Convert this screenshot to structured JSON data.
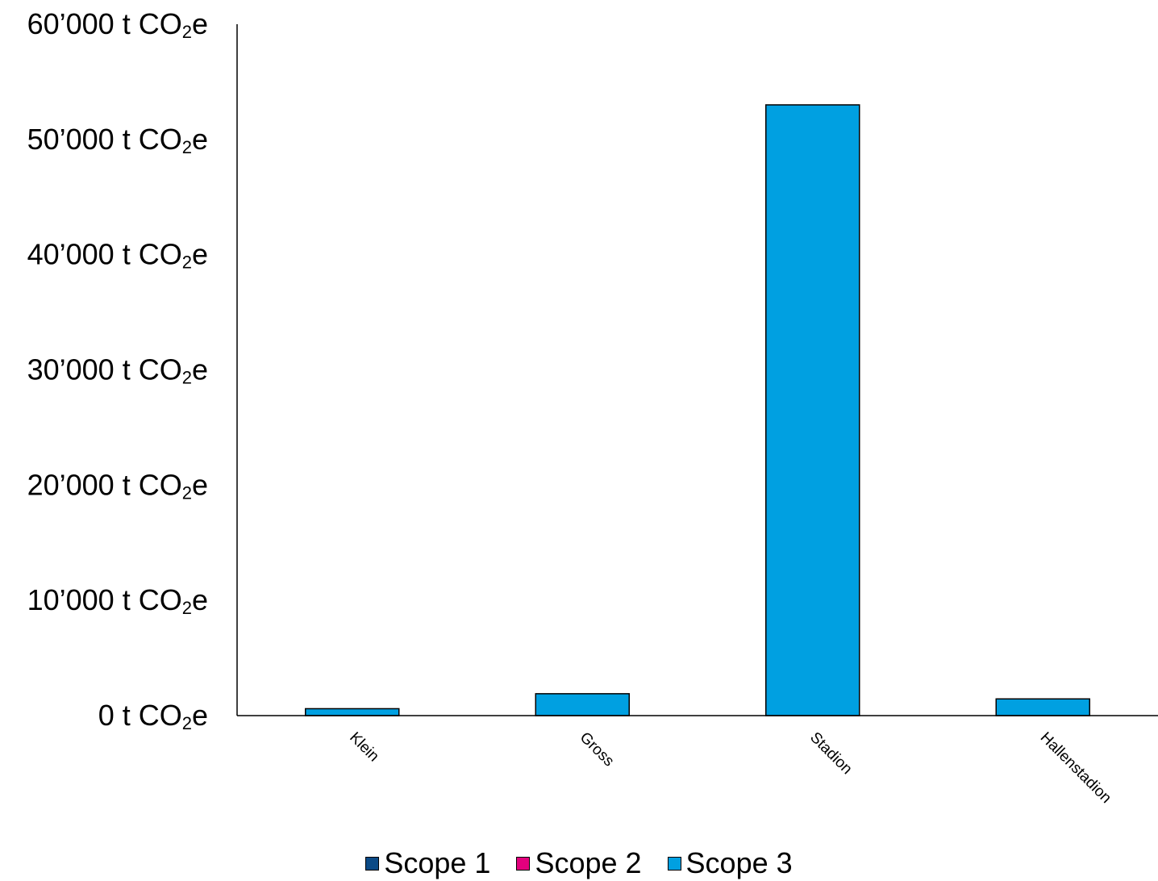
{
  "chart_data": {
    "type": "bar",
    "categories": [
      "Klein",
      "Gross",
      "Stadion",
      "Hallenstadion"
    ],
    "series": [
      {
        "name": "Scope 1",
        "color": "#0b4a86",
        "values": [
          0,
          0,
          0,
          0
        ]
      },
      {
        "name": "Scope 2",
        "color": "#e3007d",
        "values": [
          0,
          0,
          0,
          0
        ]
      },
      {
        "name": "Scope 3",
        "color": "#00a0e1",
        "values": [
          600,
          1900,
          53000,
          1450
        ]
      }
    ],
    "ylim": [
      0,
      60000
    ],
    "yticks": [
      {
        "value": 0,
        "label": "0 t CO₂e"
      },
      {
        "value": 10000,
        "label": "10’000 t CO₂e"
      },
      {
        "value": 20000,
        "label": "20’000 t CO₂e"
      },
      {
        "value": 30000,
        "label": "30’000 t CO₂e"
      },
      {
        "value": 40000,
        "label": "40’000 t CO₂e"
      },
      {
        "value": 50000,
        "label": "50’000 t CO₂e"
      },
      {
        "value": 60000,
        "label": "60’000 t CO₂e"
      }
    ],
    "stacked": true,
    "grid": false,
    "legend_position": "bottom"
  }
}
